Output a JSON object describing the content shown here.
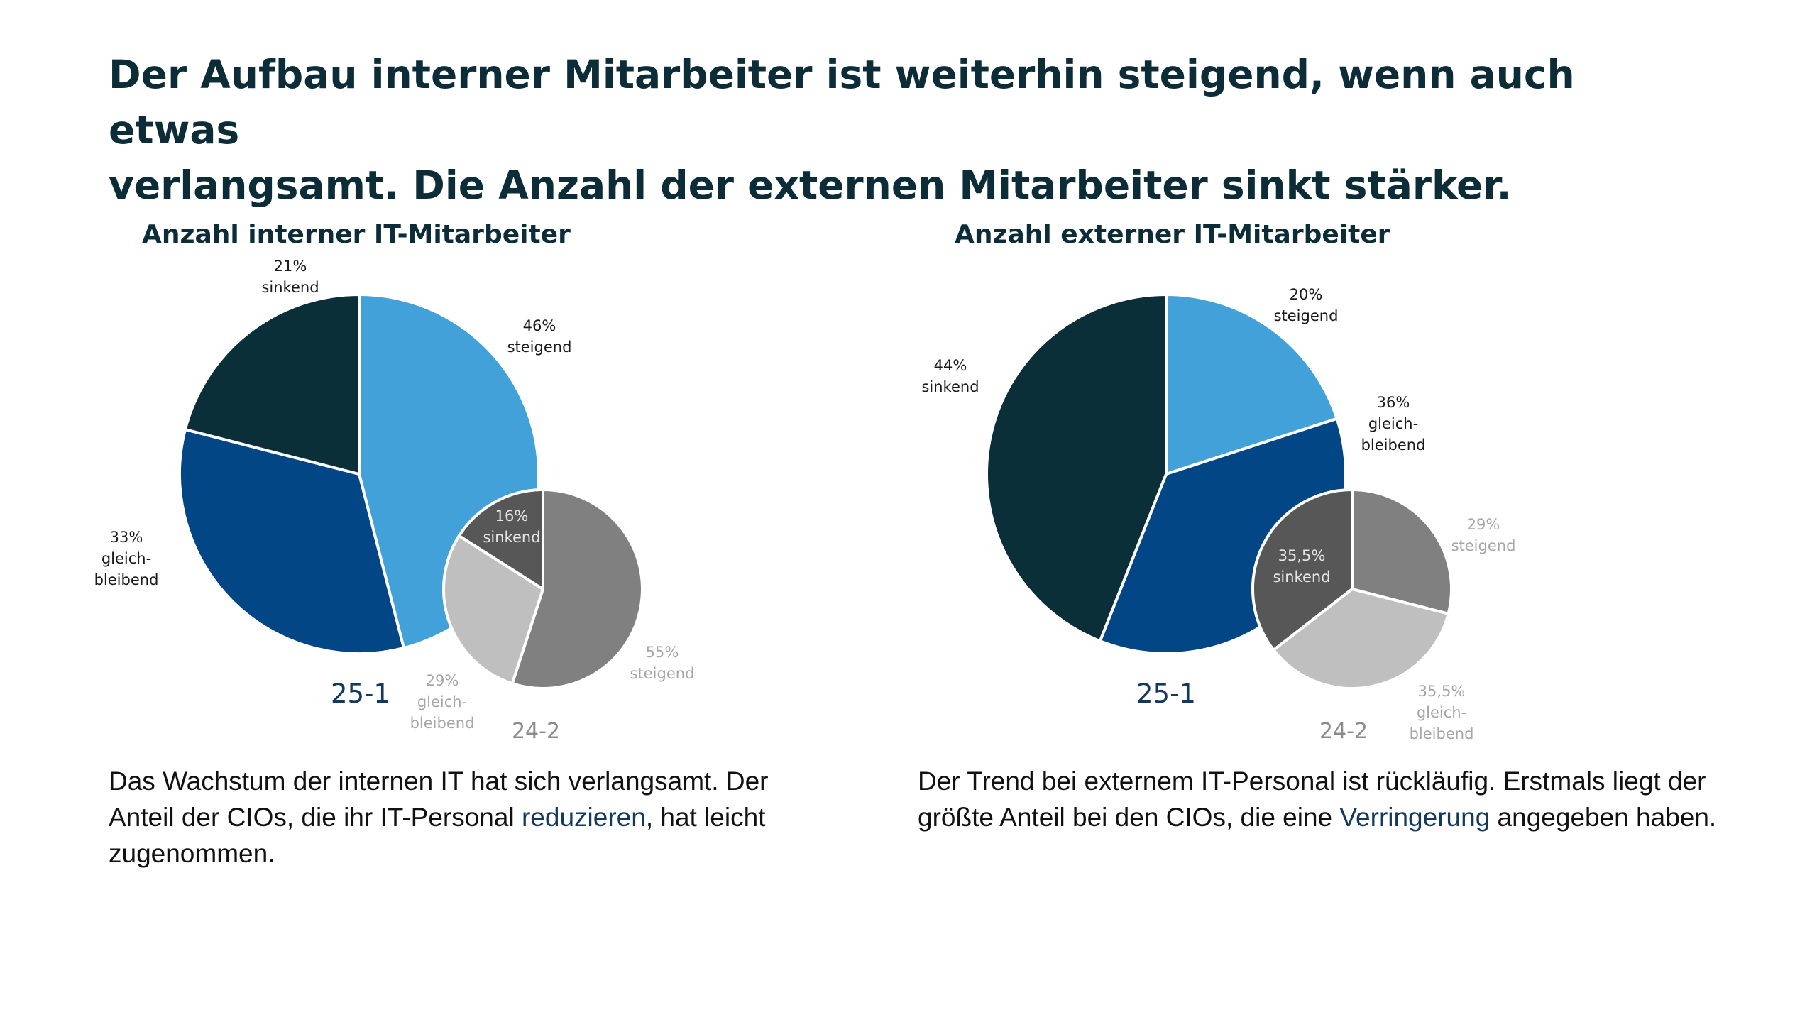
{
  "headline": {
    "line1": "Der Aufbau interner Mitarbeiter ist weiterhin steigend, wenn auch etwas",
    "line2": "verlangsamt. Die Anzahl der externen Mitarbeiter sinkt stärker."
  },
  "captions": {
    "left": {
      "before": "Das Wachstum der internen IT hat sich verlangsamt. Der Anteil der CIOs, die ihr IT-Personal ",
      "highlight": "reduzieren",
      "after": ", hat leicht zugenommen."
    },
    "right": {
      "before": "Der Trend bei externem IT-Personal ist rückläufig. Erstmals liegt der größte Anteil bei den CIOs, die eine ",
      "highlight": "Verringerung",
      "after": " angegeben haben."
    }
  },
  "colors": {
    "steigend_25": "#42a1d9",
    "gleichbleibend_25": "#034685",
    "sinkend_25": "#0b2f39",
    "steigend_24": "#808080",
    "gleichbleibend_24": "#bfbfbf",
    "sinkend_24": "#575757",
    "title": "#0c2d38",
    "label_dark": "#1a1a1a",
    "label_grey": "#a6a6a6"
  },
  "chart_data": [
    {
      "type": "pie",
      "title": "Anzahl interner IT-Mitarbeiter",
      "series": [
        {
          "name": "25-1",
          "slices": [
            {
              "category": "steigend",
              "value": 46,
              "label": "46%",
              "color_key": "steigend_25"
            },
            {
              "category": "gleichbleibend",
              "value": 33,
              "label": "33%",
              "color_key": "gleichbleibend_25"
            },
            {
              "category": "sinkend",
              "value": 21,
              "label": "21%",
              "color_key": "sinkend_25"
            }
          ]
        },
        {
          "name": "24-2",
          "slices": [
            {
              "category": "steigend",
              "value": 55,
              "label": "55%",
              "color_key": "steigend_24"
            },
            {
              "category": "gleichbleibend",
              "value": 29,
              "label": "29%",
              "color_key": "gleichbleibend_24"
            },
            {
              "category": "sinkend",
              "value": 16,
              "label": "16%",
              "color_key": "sinkend_24"
            }
          ]
        }
      ]
    },
    {
      "type": "pie",
      "title": "Anzahl externer IT-Mitarbeiter",
      "series": [
        {
          "name": "25-1",
          "slices": [
            {
              "category": "steigend",
              "value": 20,
              "label": "20%",
              "color_key": "steigend_25"
            },
            {
              "category": "gleichbleibend",
              "value": 36,
              "label": "36%",
              "color_key": "gleichbleibend_25"
            },
            {
              "category": "sinkend",
              "value": 44,
              "label": "44%",
              "color_key": "sinkend_25"
            }
          ]
        },
        {
          "name": "24-2",
          "slices": [
            {
              "category": "steigend",
              "value": 29,
              "label": "29%",
              "color_key": "steigend_24"
            },
            {
              "category": "gleichbleibend",
              "value": 35.5,
              "label": "35,5%",
              "color_key": "gleichbleibend_24"
            },
            {
              "category": "sinkend",
              "value": 35.5,
              "label": "35,5%",
              "color_key": "sinkend_24"
            }
          ]
        }
      ]
    }
  ]
}
